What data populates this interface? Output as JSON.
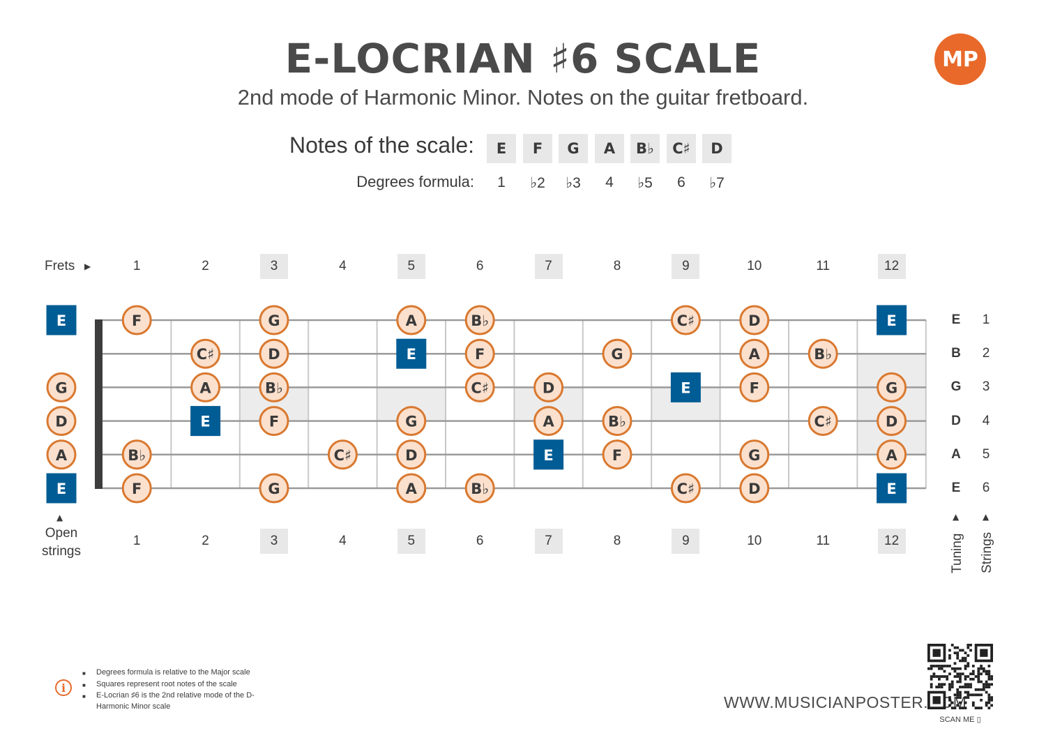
{
  "title": "E-LOCRIAN ♯6 SCALE",
  "subtitle": "2nd mode of Harmonic Minor. Notes on the guitar fretboard.",
  "logo_text": "MP",
  "scale": {
    "notes_label": "Notes of the scale:",
    "degrees_label": "Degrees formula:",
    "notes": [
      "E",
      "F",
      "G",
      "A",
      "B♭",
      "C♯",
      "D"
    ],
    "degrees": [
      "1",
      "♭2",
      "♭3",
      "4",
      "♭5",
      "6",
      "♭7"
    ]
  },
  "fretboard": {
    "frets_label": "Frets",
    "open_label": "Open strings",
    "tuning_label": "Tuning",
    "strings_label": "Strings",
    "fret_numbers": [
      "1",
      "2",
      "3",
      "4",
      "5",
      "6",
      "7",
      "8",
      "9",
      "10",
      "11",
      "12"
    ],
    "marked_frets": [
      3,
      5,
      7,
      9,
      12
    ],
    "root_note": "E",
    "tuning": [
      "E",
      "B",
      "G",
      "D",
      "A",
      "E"
    ],
    "string_numbers": [
      "1",
      "2",
      "3",
      "4",
      "5",
      "6"
    ],
    "open_notes": [
      "E",
      null,
      "G",
      "D",
      "A",
      "E"
    ],
    "notes": [
      [
        "F",
        null,
        "G",
        null,
        "A",
        "B♭",
        null,
        null,
        "C♯",
        "D",
        null,
        "E"
      ],
      [
        null,
        "C♯",
        "D",
        null,
        "E",
        "F",
        null,
        "G",
        null,
        "A",
        "B♭",
        null
      ],
      [
        null,
        "A",
        "B♭",
        null,
        null,
        "C♯",
        "D",
        null,
        "E",
        "F",
        null,
        "G"
      ],
      [
        null,
        "E",
        "F",
        null,
        "G",
        null,
        "A",
        "B♭",
        null,
        null,
        "C♯",
        "D"
      ],
      [
        "B♭",
        null,
        null,
        "C♯",
        "D",
        null,
        "E",
        "F",
        null,
        "G",
        null,
        "A"
      ],
      [
        "F",
        null,
        "G",
        null,
        "A",
        "B♭",
        null,
        null,
        "C♯",
        "D",
        null,
        "E"
      ]
    ],
    "colors": {
      "root_fill": "#005c94",
      "note_fill": "#fbe0cd",
      "note_stroke": "#d9782f",
      "string": "#9a9a9a",
      "fret_line": "#c8c8c8",
      "nut": "#3d3d3d",
      "marker": "#ececec"
    }
  },
  "footnotes": [
    "Degrees formula is relative to the Major scale",
    "Squares represent root notes of the scale",
    "E-Locrian ♯6 is the 2nd relative mode of the D-Harmonic Minor scale"
  ],
  "website": "WWW.MUSICIANPOSTER.COM",
  "scan_me": "SCAN ME"
}
